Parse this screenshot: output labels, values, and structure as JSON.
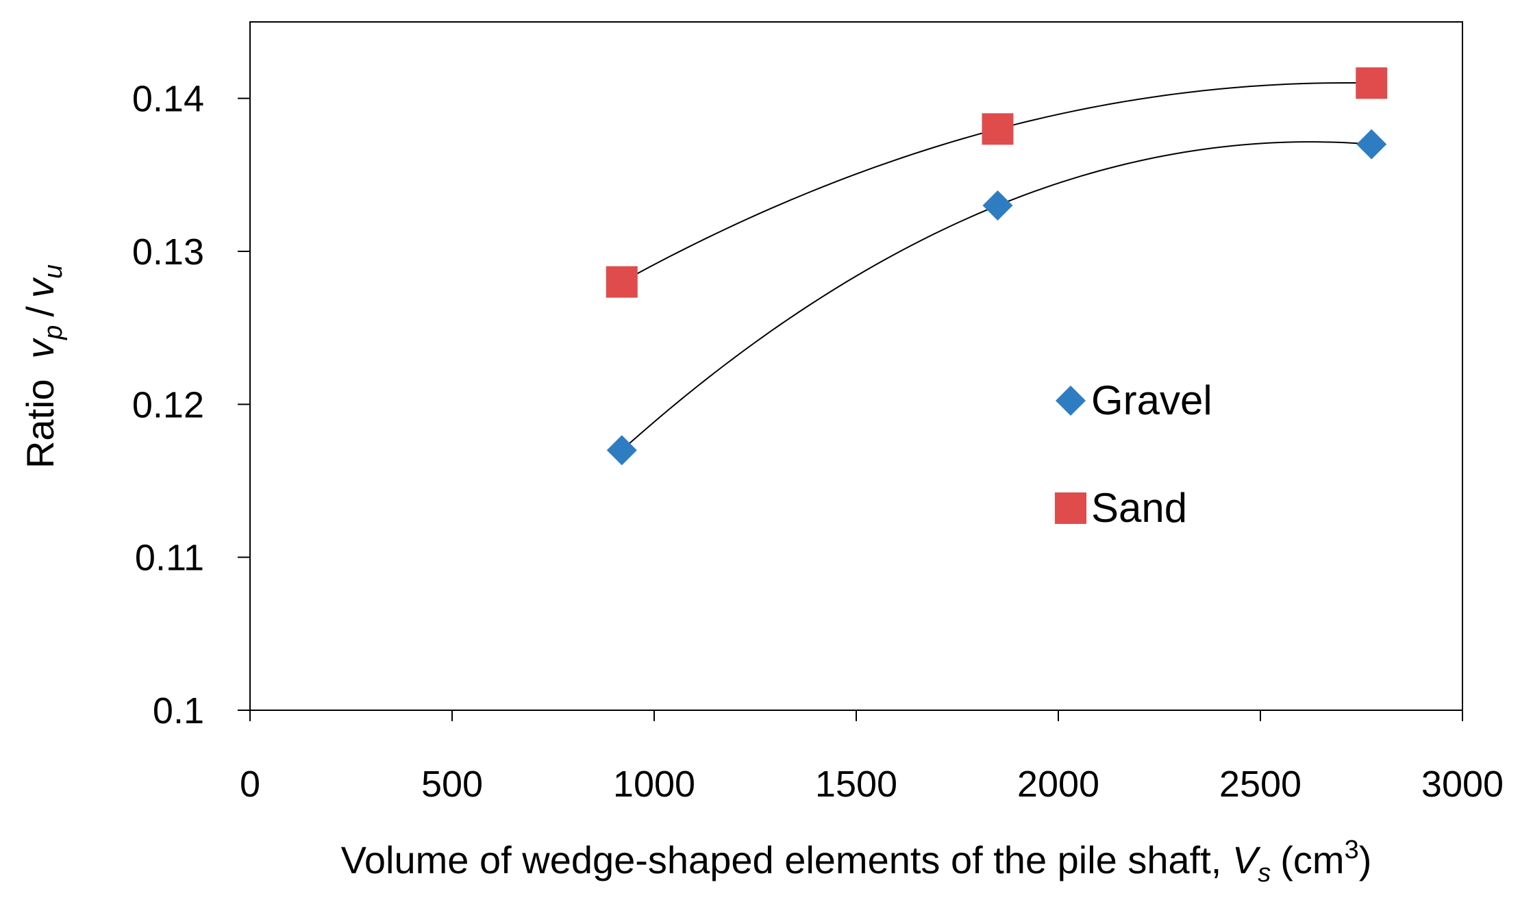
{
  "chart_data": {
    "type": "scatter",
    "title": "",
    "xlabel": {
      "main": "Volume of wedge-shaped elements of the pile shaft,",
      "symbol": "V",
      "symbol_sub": "s",
      "unit_open": "(cm",
      "unit_sup": "3",
      "unit_close": ")"
    },
    "ylabel": {
      "main": "Ratio",
      "num": "v",
      "num_sub": "p",
      "slash": "/",
      "den": "v",
      "den_sub": "u"
    },
    "xlim": [
      0,
      3000
    ],
    "ylim": [
      0.1,
      0.145
    ],
    "x_ticks": [
      0,
      500,
      1000,
      1500,
      2000,
      2500,
      3000
    ],
    "x_tick_labels": [
      "0",
      "500",
      "1000",
      "1500",
      "2000",
      "2500",
      "3000"
    ],
    "y_ticks": [
      0.1,
      0.11,
      0.12,
      0.13,
      0.14
    ],
    "y_tick_labels": [
      "0.1",
      "0.11",
      "0.12",
      "0.13",
      "0.14"
    ],
    "grid": false,
    "legend_position": "center-right",
    "series": [
      {
        "name": "Gravel",
        "marker": "diamond",
        "color": "#2E7DC2",
        "x": [
          920,
          1850,
          2775
        ],
        "y": [
          0.117,
          0.133,
          0.137
        ]
      },
      {
        "name": "Sand",
        "marker": "square",
        "color": "#E04C4C",
        "x": [
          920,
          1850,
          2775
        ],
        "y": [
          0.128,
          0.138,
          0.141
        ]
      }
    ],
    "trendline": {
      "type": "polynomial-2",
      "color": "#000000"
    }
  }
}
